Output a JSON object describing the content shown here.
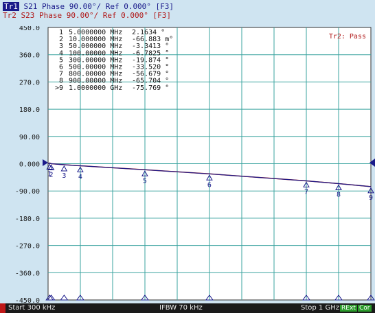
{
  "header": {
    "tr1_badge": "Tr1",
    "tr1_text": " S21 Phase 90.00°/ Ref 0.000° [F3]",
    "tr2_text": "Tr2 S23 Phase 90.00°/ Ref 0.000° [F3]",
    "colors": {
      "tr1": "#1a1a8a",
      "tr2": "#b01818"
    }
  },
  "status": {
    "pass_text": "Tr2: Pass"
  },
  "markers_table": [
    {
      "id": "1",
      "freq": "5.0000000 MHz",
      "value": "2.1634 °"
    },
    {
      "id": "2",
      "freq": "10.000000 MHz",
      "value": "-66.883 m°"
    },
    {
      "id": "3",
      "freq": "50.000000 MHz",
      "value": "-3.3413 °"
    },
    {
      "id": "4",
      "freq": "100.00000 MHz",
      "value": "-6.7825 °"
    },
    {
      "id": "5",
      "freq": "300.00000 MHz",
      "value": "-19.874 °"
    },
    {
      "id": "6",
      "freq": "500.00000 MHz",
      "value": "-33.520 °"
    },
    {
      "id": "7",
      "freq": "800.00000 MHz",
      "value": "-56.679 °"
    },
    {
      "id": "8",
      "freq": "900.00000 MHz",
      "value": "-65.704 °"
    },
    {
      "id": ">9",
      "freq": "1.0000000 GHz",
      "value": "-75.769 °"
    }
  ],
  "chart_data": {
    "type": "line",
    "ylim": [
      -450,
      450
    ],
    "xlim_mhz": [
      0.3,
      1000
    ],
    "y_ticks": [
      "450.0",
      "360.0",
      "270.0",
      "180.0",
      "90.00",
      "0.000",
      "-90.00",
      "-180.0",
      "-270.0",
      "-360.0",
      "-450.0"
    ],
    "y_tick_values": [
      450,
      360,
      270,
      180,
      90,
      0,
      -90,
      -180,
      -270,
      -360,
      -450
    ],
    "grid": true,
    "series": [
      {
        "x": [
          0.3,
          5,
          10,
          50,
          100,
          300,
          500,
          800,
          900,
          1000
        ],
        "y": [
          0,
          2.1634,
          -0.0669,
          -3.3413,
          -6.7825,
          -19.874,
          -33.52,
          -56.679,
          -65.704,
          -75.769
        ]
      }
    ],
    "marker_points": [
      {
        "label": "1",
        "x": 5,
        "y": 2.1634
      },
      {
        "label": "2",
        "x": 10,
        "y": -0.0669
      },
      {
        "label": "3",
        "x": 50,
        "y": -3.3413
      },
      {
        "label": "4",
        "x": 100,
        "y": -6.7825
      },
      {
        "label": "5",
        "x": 300,
        "y": -19.874
      },
      {
        "label": "6",
        "x": 500,
        "y": -33.52
      },
      {
        "label": "7",
        "x": 800,
        "y": -56.679
      },
      {
        "label": "8",
        "x": 900,
        "y": -65.704
      },
      {
        "label": "9",
        "x": 1000,
        "y": -75.769
      }
    ]
  },
  "footer": {
    "start": "Start 300 kHz",
    "ifbw": "IFBW 70 kHz",
    "stop": "Stop 1 GHz",
    "chip_a": "RExt",
    "chip_b": "Cor"
  }
}
